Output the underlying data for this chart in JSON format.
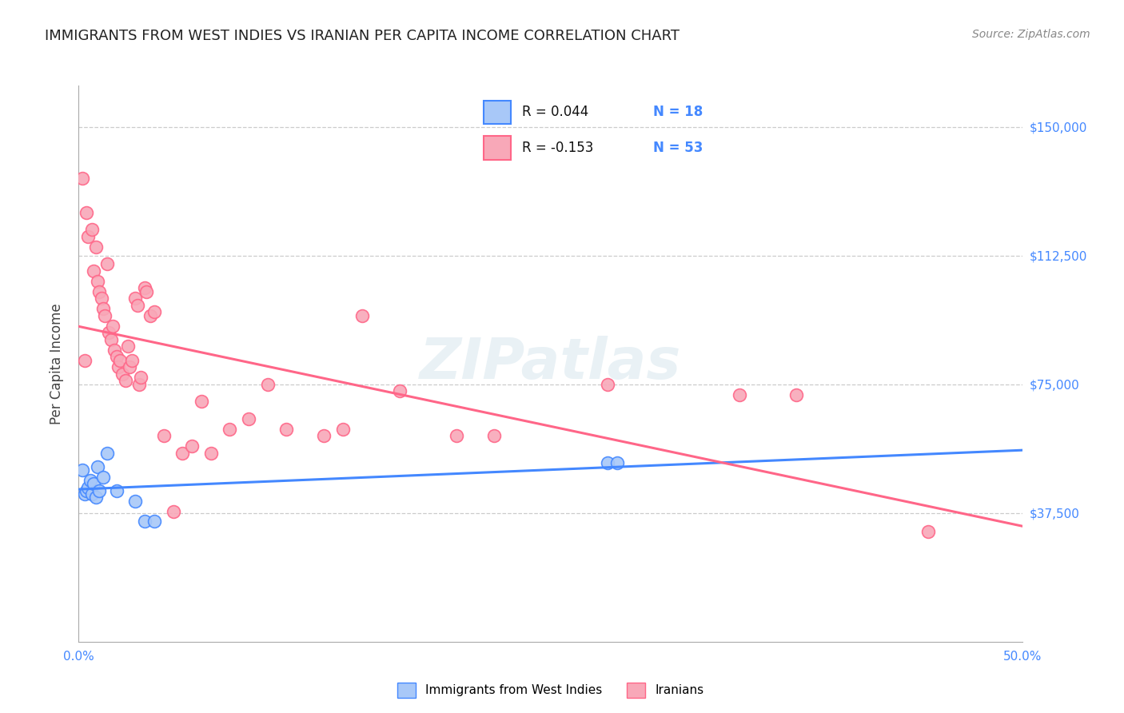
{
  "title": "IMMIGRANTS FROM WEST INDIES VS IRANIAN PER CAPITA INCOME CORRELATION CHART",
  "source": "Source: ZipAtlas.com",
  "ylabel": "Per Capita Income",
  "yticks": [
    0,
    37500,
    75000,
    112500,
    150000
  ],
  "ytick_labels": [
    "",
    "$37,500",
    "$75,000",
    "$112,500",
    "$150,000"
  ],
  "ylim": [
    0,
    162000
  ],
  "xlim": [
    0.0,
    0.5
  ],
  "watermark": "ZIPatlas",
  "blue_color": "#a8c8f8",
  "pink_color": "#f8a8b8",
  "blue_line_color": "#4488ff",
  "pink_line_color": "#ff6688",
  "blue_scatter": [
    [
      0.002,
      50000
    ],
    [
      0.003,
      43000
    ],
    [
      0.004,
      44000
    ],
    [
      0.005,
      45000
    ],
    [
      0.006,
      47000
    ],
    [
      0.007,
      43000
    ],
    [
      0.008,
      46000
    ],
    [
      0.009,
      42000
    ],
    [
      0.01,
      51000
    ],
    [
      0.011,
      44000
    ],
    [
      0.013,
      48000
    ],
    [
      0.015,
      55000
    ],
    [
      0.02,
      44000
    ],
    [
      0.03,
      41000
    ],
    [
      0.035,
      35000
    ],
    [
      0.04,
      35000
    ],
    [
      0.28,
      52000
    ],
    [
      0.285,
      52000
    ]
  ],
  "pink_scatter": [
    [
      0.002,
      135000
    ],
    [
      0.004,
      125000
    ],
    [
      0.005,
      118000
    ],
    [
      0.007,
      120000
    ],
    [
      0.008,
      108000
    ],
    [
      0.009,
      115000
    ],
    [
      0.01,
      105000
    ],
    [
      0.011,
      102000
    ],
    [
      0.012,
      100000
    ],
    [
      0.013,
      97000
    ],
    [
      0.014,
      95000
    ],
    [
      0.015,
      110000
    ],
    [
      0.016,
      90000
    ],
    [
      0.017,
      88000
    ],
    [
      0.018,
      92000
    ],
    [
      0.019,
      85000
    ],
    [
      0.02,
      83000
    ],
    [
      0.021,
      80000
    ],
    [
      0.022,
      82000
    ],
    [
      0.023,
      78000
    ],
    [
      0.025,
      76000
    ],
    [
      0.026,
      86000
    ],
    [
      0.027,
      80000
    ],
    [
      0.028,
      82000
    ],
    [
      0.03,
      100000
    ],
    [
      0.031,
      98000
    ],
    [
      0.032,
      75000
    ],
    [
      0.033,
      77000
    ],
    [
      0.035,
      103000
    ],
    [
      0.036,
      102000
    ],
    [
      0.038,
      95000
    ],
    [
      0.04,
      96000
    ],
    [
      0.045,
      60000
    ],
    [
      0.05,
      38000
    ],
    [
      0.055,
      55000
    ],
    [
      0.06,
      57000
    ],
    [
      0.065,
      70000
    ],
    [
      0.07,
      55000
    ],
    [
      0.08,
      62000
    ],
    [
      0.09,
      65000
    ],
    [
      0.1,
      75000
    ],
    [
      0.11,
      62000
    ],
    [
      0.13,
      60000
    ],
    [
      0.14,
      62000
    ],
    [
      0.15,
      95000
    ],
    [
      0.17,
      73000
    ],
    [
      0.2,
      60000
    ],
    [
      0.22,
      60000
    ],
    [
      0.28,
      75000
    ],
    [
      0.35,
      72000
    ],
    [
      0.38,
      72000
    ],
    [
      0.45,
      32000
    ],
    [
      0.003,
      82000
    ]
  ],
  "title_color": "#222222",
  "axis_label_color": "#4488ff",
  "title_fontsize": 13,
  "source_fontsize": 10,
  "watermark_color": "#c8dde8",
  "watermark_fontsize": 52,
  "watermark_alpha": 0.4
}
